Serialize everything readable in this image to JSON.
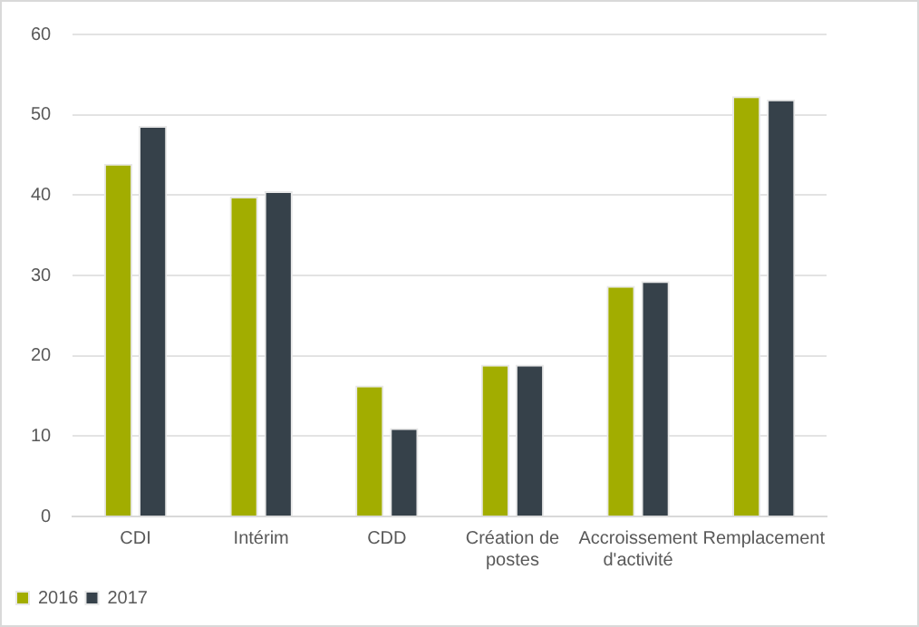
{
  "chart_data": {
    "type": "bar",
    "categories": [
      "CDI",
      "Intérim",
      "CDD",
      "Création de postes",
      "Accroissement d'activité",
      "Remplacement"
    ],
    "series": [
      {
        "name": "2016",
        "color": "#a2ad00",
        "values": [
          43.9,
          39.8,
          16.3,
          18.9,
          28.7,
          52.3
        ]
      },
      {
        "name": "2017",
        "color": "#36414a",
        "values": [
          48.6,
          40.5,
          11,
          18.9,
          29.3,
          51.9
        ]
      }
    ],
    "ylim": [
      0,
      60
    ],
    "yticks": [
      0,
      10,
      20,
      30,
      40,
      50,
      60
    ],
    "grid": "y",
    "legend": "bottom left"
  }
}
